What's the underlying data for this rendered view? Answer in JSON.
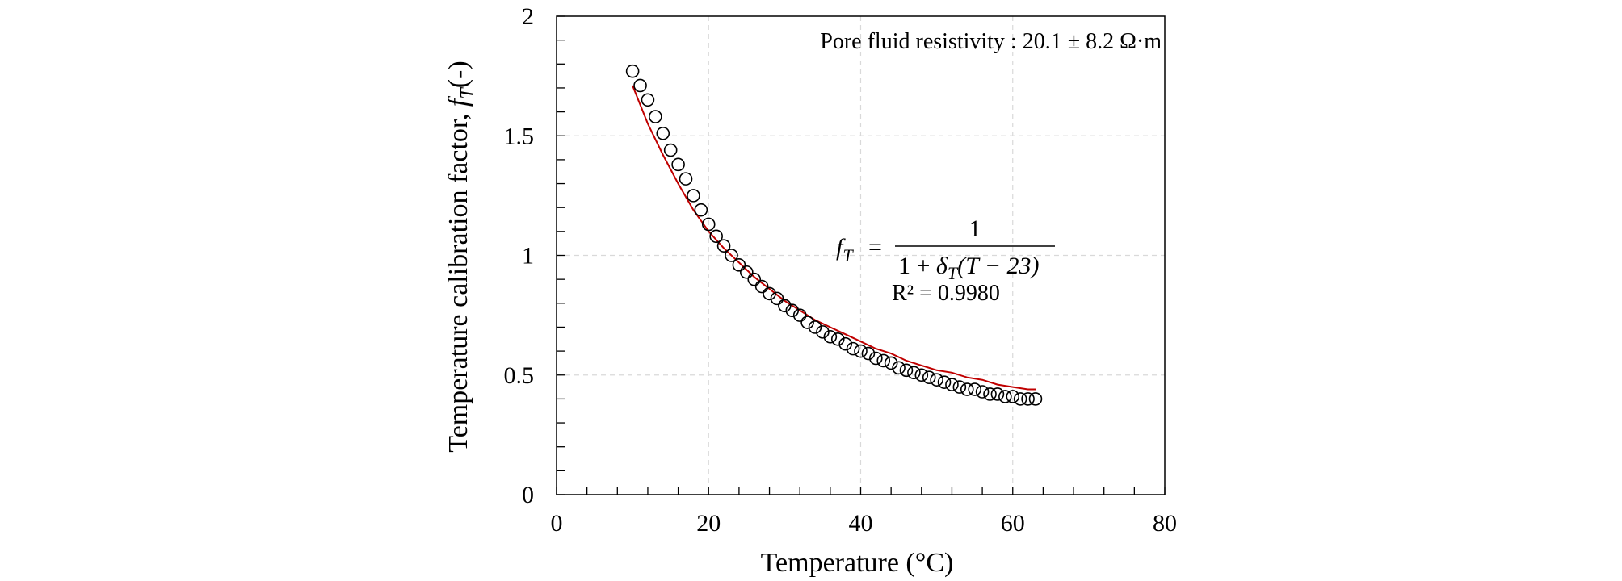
{
  "chart_data": {
    "type": "scatter",
    "xlabel": "Temperature (°C)",
    "ylabel_text": "Temperature calibration factor,",
    "ylabel_symbol": "f",
    "ylabel_subscript": "T",
    "ylabel_unit": "(-)",
    "xlim": [
      0,
      80
    ],
    "ylim": [
      0,
      2
    ],
    "x_ticks": [
      "0",
      "20",
      "40",
      "60",
      "80"
    ],
    "y_ticks": [
      "0",
      "0.5",
      "1",
      "1.5",
      "2"
    ],
    "grid": true,
    "annotation": "Pore fluid resistivity : 20.1 ± 8.2 Ω·m",
    "equation": {
      "lhs_symbol": "f",
      "lhs_subscript": "T",
      "equals": "=",
      "numerator": "1",
      "denominator_prefix": "1 +",
      "denominator_symbol": "δ",
      "denominator_subscript": "T",
      "denominator_suffix": "(T − 23)"
    },
    "r_squared": "R² = 0.9980",
    "fit_color": "#c00000",
    "marker_color": "#000000",
    "series": [
      {
        "kind": "measured",
        "marker": "open-circle",
        "x": [
          10,
          11,
          12,
          13,
          14,
          15,
          16,
          17,
          18,
          19,
          20,
          21,
          22,
          23,
          24,
          25,
          26,
          27,
          28,
          29,
          30,
          31,
          32,
          33,
          34,
          35,
          36,
          37,
          38,
          39,
          40,
          41,
          42,
          43,
          44,
          45,
          46,
          47,
          48,
          49,
          50,
          51,
          52,
          53,
          54,
          55,
          56,
          57,
          58,
          59,
          60,
          61,
          62,
          63
        ],
        "y": [
          1.77,
          1.71,
          1.65,
          1.58,
          1.51,
          1.44,
          1.38,
          1.32,
          1.25,
          1.19,
          1.13,
          1.08,
          1.04,
          1.0,
          0.96,
          0.93,
          0.9,
          0.87,
          0.84,
          0.82,
          0.79,
          0.77,
          0.75,
          0.72,
          0.7,
          0.68,
          0.66,
          0.65,
          0.63,
          0.61,
          0.6,
          0.59,
          0.57,
          0.56,
          0.55,
          0.53,
          0.52,
          0.51,
          0.5,
          0.49,
          0.48,
          0.47,
          0.46,
          0.45,
          0.44,
          0.44,
          0.43,
          0.42,
          0.42,
          0.41,
          0.41,
          0.4,
          0.4,
          0.4
        ]
      },
      {
        "kind": "fit",
        "line": "solid",
        "x": [
          10,
          12,
          14,
          16,
          18,
          20,
          22,
          24,
          26,
          28,
          30,
          32,
          34,
          36,
          38,
          40,
          42,
          44,
          46,
          48,
          50,
          52,
          54,
          56,
          58,
          60,
          62,
          63
        ],
        "y": [
          1.71,
          1.55,
          1.42,
          1.3,
          1.19,
          1.1,
          1.03,
          0.97,
          0.91,
          0.86,
          0.81,
          0.77,
          0.73,
          0.7,
          0.67,
          0.64,
          0.61,
          0.59,
          0.56,
          0.54,
          0.52,
          0.51,
          0.49,
          0.48,
          0.46,
          0.45,
          0.44,
          0.44
        ]
      }
    ]
  }
}
